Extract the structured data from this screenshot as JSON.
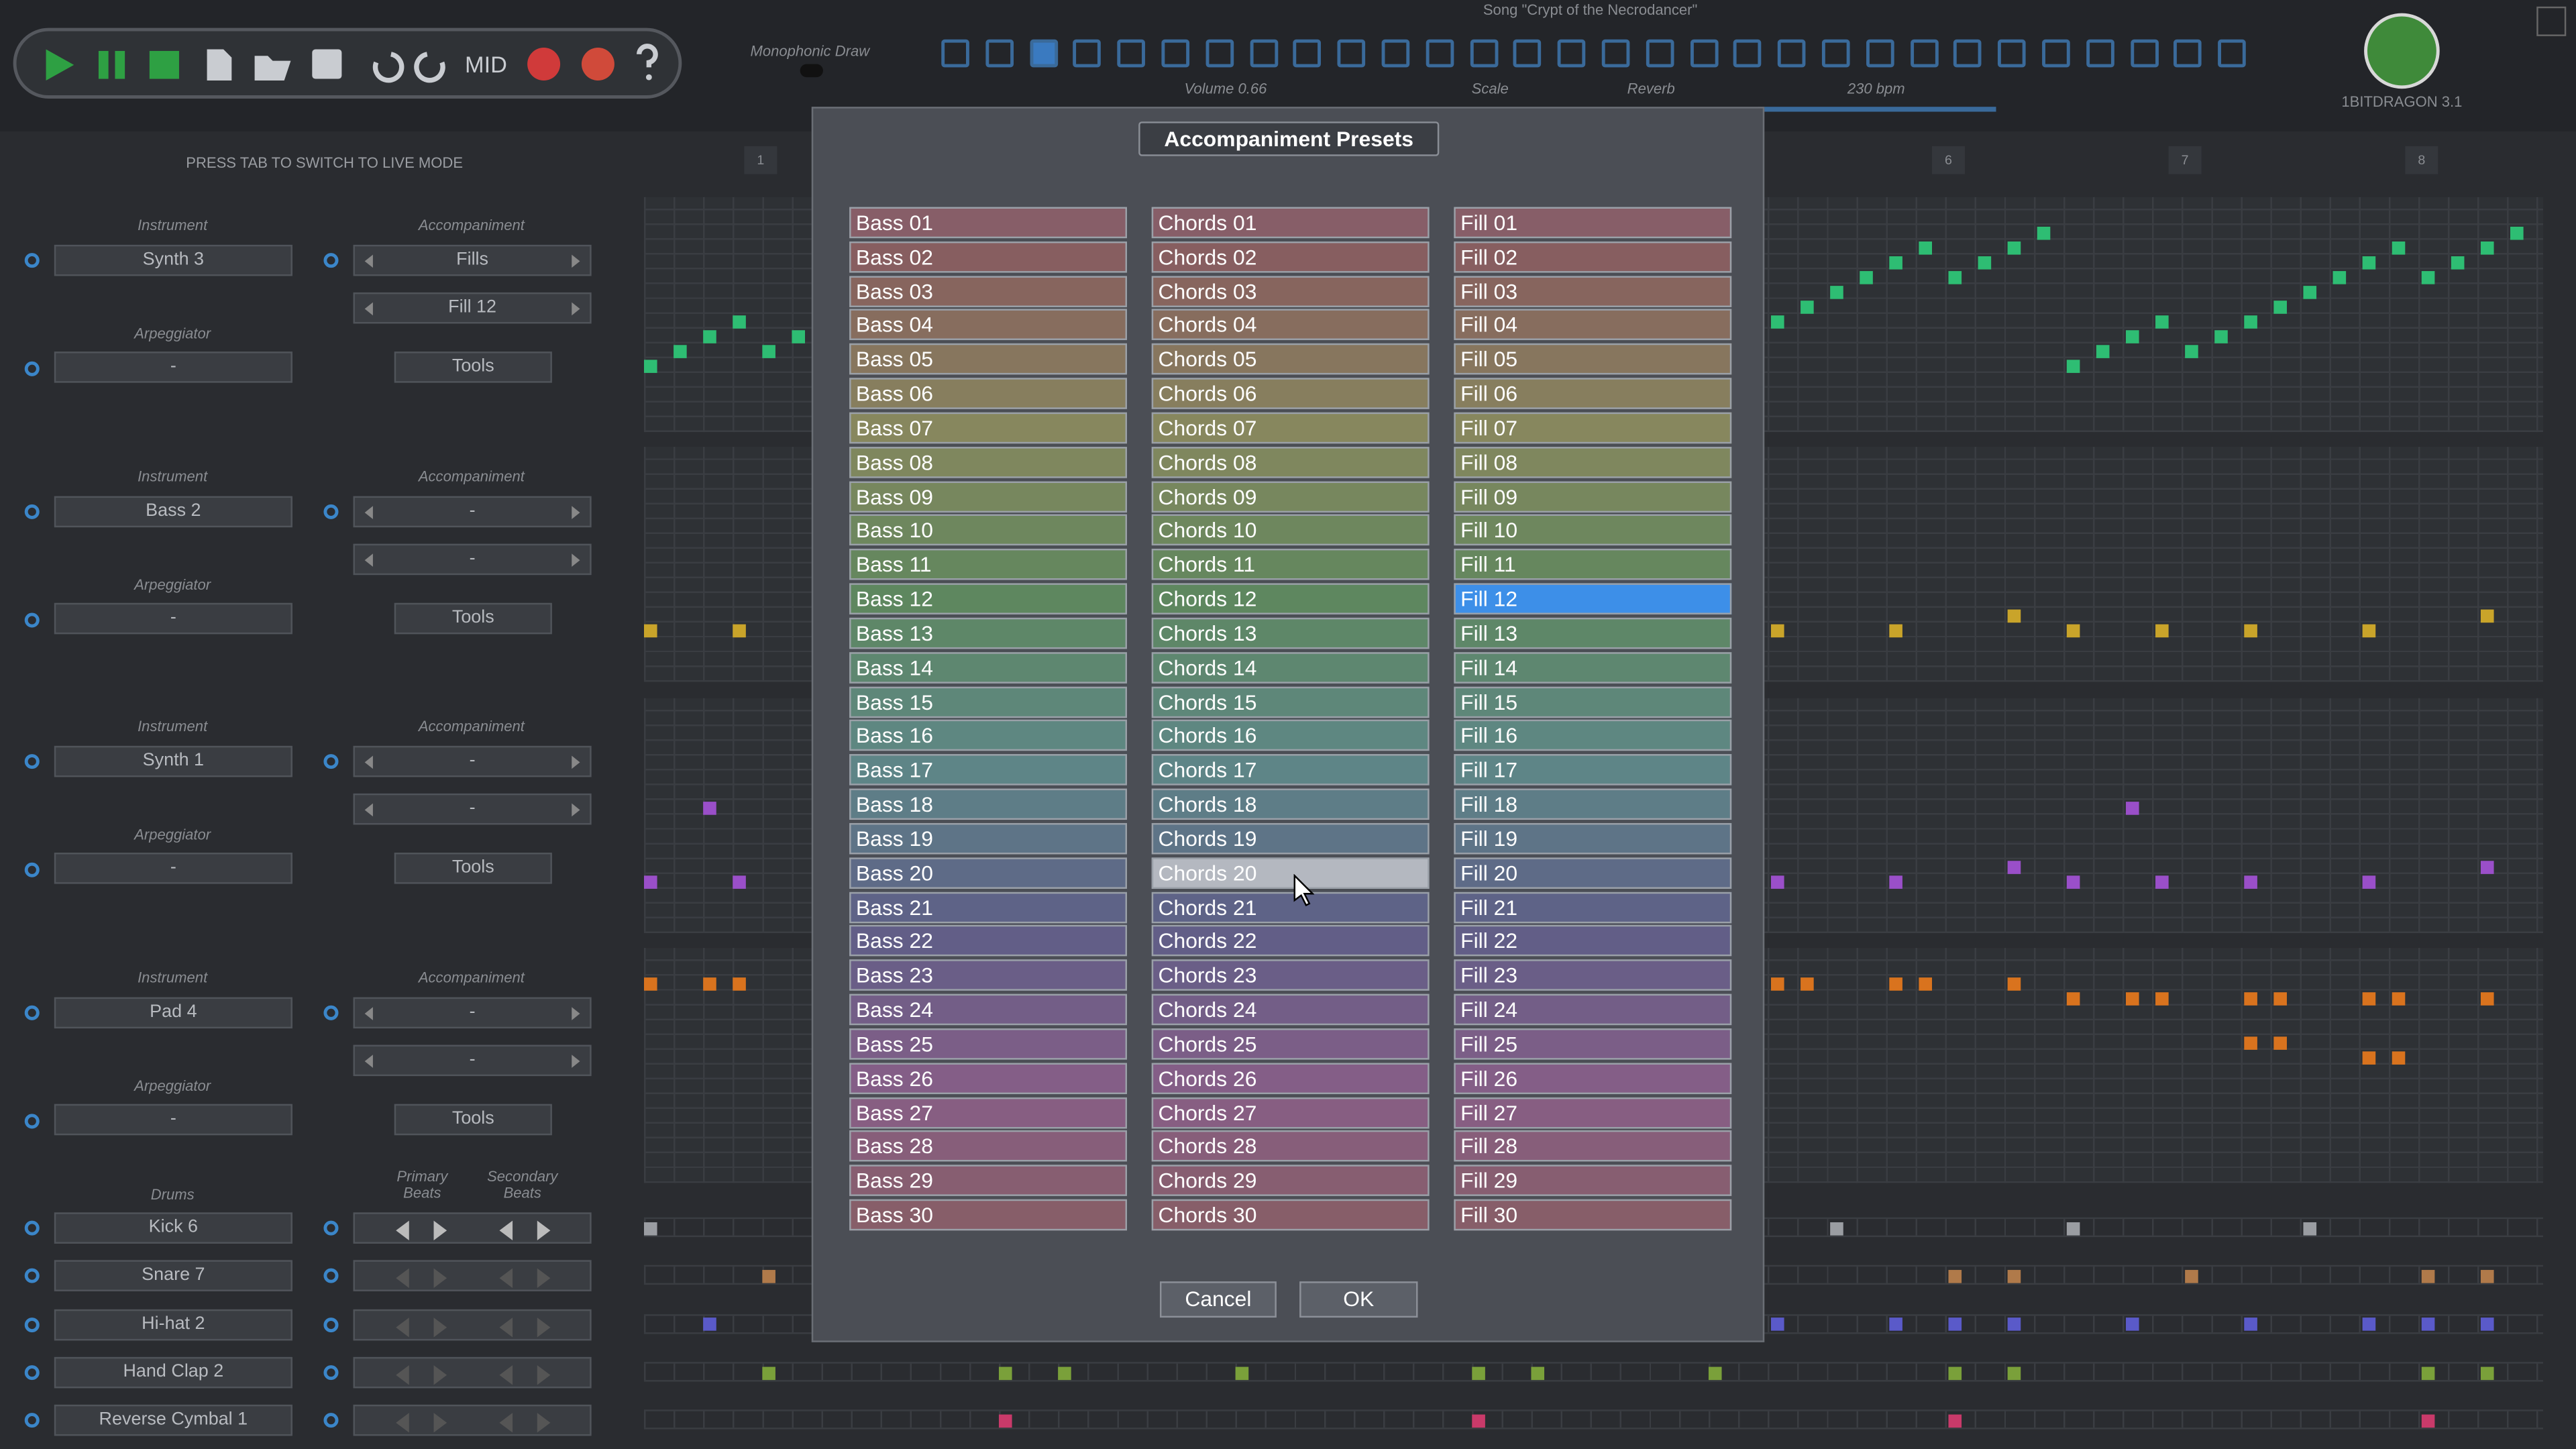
{
  "header": {
    "toolbar_midi": "MID",
    "monophonic_draw": "Monophonic Draw",
    "song_title": "Song \"Crypt of the Necrodancer\"",
    "volume": "Volume 0.66",
    "scale": "Scale",
    "reverb": "Reverb",
    "tempo": "230 bpm",
    "app_name": "1BITDRAGON 3.1"
  },
  "live_mode_hint": "PRESS TAB TO SWITCH TO LIVE MODE",
  "tracks": [
    {
      "instrument_label": "Instrument",
      "instrument": "Synth 3",
      "accompaniment_label": "Accompaniment",
      "accompaniment": "Fills",
      "accompaniment_preset": "Fill 12",
      "arpeggiator_label": "Arpeggiator",
      "arpeggiator": "-",
      "tools": "Tools"
    },
    {
      "instrument_label": "Instrument",
      "instrument": "Bass 2",
      "accompaniment_label": "Accompaniment",
      "accompaniment": "-",
      "accompaniment_preset": "-",
      "arpeggiator_label": "Arpeggiator",
      "arpeggiator": "-",
      "tools": "Tools"
    },
    {
      "instrument_label": "Instrument",
      "instrument": "Synth 1",
      "accompaniment_label": "Accompaniment",
      "accompaniment": "-",
      "accompaniment_preset": "-",
      "arpeggiator_label": "Arpeggiator",
      "arpeggiator": "-",
      "tools": "Tools"
    },
    {
      "instrument_label": "Instrument",
      "instrument": "Pad 4",
      "accompaniment_label": "Accompaniment",
      "accompaniment": "-",
      "accompaniment_preset": "-",
      "arpeggiator_label": "Arpeggiator",
      "arpeggiator": "-",
      "tools": "Tools"
    }
  ],
  "drums": {
    "label": "Drums",
    "primary_beats": "Primary Beats",
    "secondary_beats": "Secondary Beats",
    "items": [
      "Kick 6",
      "Snare 7",
      "Hi-hat 2",
      "Hand Clap 2",
      "Reverse Cymbal 1"
    ]
  },
  "measures": [
    "1",
    "6",
    "7",
    "8"
  ],
  "dialog": {
    "title": "Accompaniment Presets",
    "selected": "Fill 12",
    "hovered": "Chords 20",
    "columns": [
      {
        "items": [
          "Bass 01",
          "Bass 02",
          "Bass 03",
          "Bass 04",
          "Bass 05",
          "Bass 06",
          "Bass 07",
          "Bass 08",
          "Bass 09",
          "Bass 10",
          "Bass 11",
          "Bass 12",
          "Bass 13",
          "Bass 14",
          "Bass 15",
          "Bass 16",
          "Bass 17",
          "Bass 18",
          "Bass 19",
          "Bass 20",
          "Bass 21",
          "Bass 22",
          "Bass 23",
          "Bass 24",
          "Bass 25",
          "Bass 26",
          "Bass 27",
          "Bass 28",
          "Bass 29",
          "Bass 30"
        ]
      },
      {
        "items": [
          "Chords 01",
          "Chords 02",
          "Chords 03",
          "Chords 04",
          "Chords 05",
          "Chords 06",
          "Chords 07",
          "Chords 08",
          "Chords 09",
          "Chords 10",
          "Chords 11",
          "Chords 12",
          "Chords 13",
          "Chords 14",
          "Chords 15",
          "Chords 16",
          "Chords 17",
          "Chords 18",
          "Chords 19",
          "Chords 20",
          "Chords 21",
          "Chords 22",
          "Chords 23",
          "Chords 24",
          "Chords 25",
          "Chords 26",
          "Chords 27",
          "Chords 28",
          "Chords 29",
          "Chords 30"
        ]
      },
      {
        "items": [
          "Fill 01",
          "Fill 02",
          "Fill 03",
          "Fill 04",
          "Fill 05",
          "Fill 06",
          "Fill 07",
          "Fill 08",
          "Fill 09",
          "Fill 10",
          "Fill 11",
          "Fill 12",
          "Fill 13",
          "Fill 14",
          "Fill 15",
          "Fill 16",
          "Fill 17",
          "Fill 18",
          "Fill 19",
          "Fill 20",
          "Fill 21",
          "Fill 22",
          "Fill 23",
          "Fill 24",
          "Fill 25",
          "Fill 26",
          "Fill 27",
          "Fill 28",
          "Fill 29",
          "Fill 30"
        ]
      }
    ],
    "buttons": [
      "Cancel",
      "OK"
    ]
  }
}
